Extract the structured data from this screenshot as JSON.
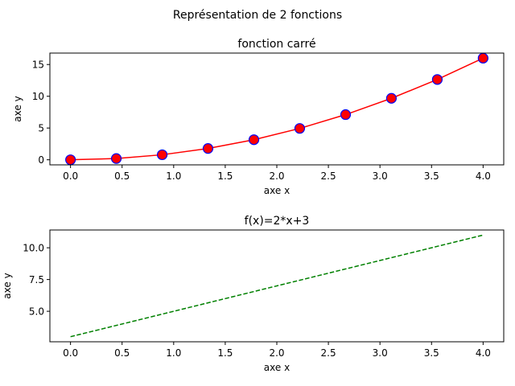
{
  "figure": {
    "suptitle": "Représentation de 2 fonctions"
  },
  "chart_data": [
    {
      "type": "line",
      "title": "fonction carré",
      "xlabel": "axe x",
      "ylabel": "axe y",
      "xlim": [
        -0.2,
        4.2
      ],
      "ylim": [
        -0.8,
        16.8
      ],
      "xticks": [
        0.0,
        0.5,
        1.0,
        1.5,
        2.0,
        2.5,
        3.0,
        3.5,
        4.0
      ],
      "xtick_labels": [
        "0.0",
        "0.5",
        "1.0",
        "1.5",
        "2.0",
        "2.5",
        "3.0",
        "3.5",
        "4.0"
      ],
      "yticks": [
        0,
        5,
        10,
        15
      ],
      "ytick_labels": [
        "0",
        "5",
        "10",
        "15"
      ],
      "grid": false,
      "series": [
        {
          "x": [
            0.0,
            0.444,
            0.889,
            1.333,
            1.778,
            2.222,
            2.667,
            3.111,
            3.556,
            4.0
          ],
          "y": [
            0.0,
            0.198,
            0.79,
            1.778,
            3.16,
            4.938,
            7.111,
            9.679,
            12.642,
            16.0
          ],
          "line_color": "#ff0000",
          "line_style": "solid",
          "marker": "circle",
          "marker_face_color": "#ff0000",
          "marker_edge_color": "#0000ff"
        }
      ]
    },
    {
      "type": "line",
      "title": "f(x)=2*x+3",
      "xlabel": "axe x",
      "ylabel": "axe y",
      "xlim": [
        -0.2,
        4.2
      ],
      "ylim": [
        2.6,
        11.4
      ],
      "xticks": [
        0.0,
        0.5,
        1.0,
        1.5,
        2.0,
        2.5,
        3.0,
        3.5,
        4.0
      ],
      "xtick_labels": [
        "0.0",
        "0.5",
        "1.0",
        "1.5",
        "2.0",
        "2.5",
        "3.0",
        "3.5",
        "4.0"
      ],
      "yticks": [
        5.0,
        7.5,
        10.0
      ],
      "ytick_labels": [
        "5.0",
        "7.5",
        "10.0"
      ],
      "grid": false,
      "series": [
        {
          "x": [
            0.0,
            4.0
          ],
          "y": [
            3.0,
            11.0
          ],
          "line_color": "#008000",
          "line_style": "dashed",
          "marker": "none"
        }
      ]
    }
  ]
}
